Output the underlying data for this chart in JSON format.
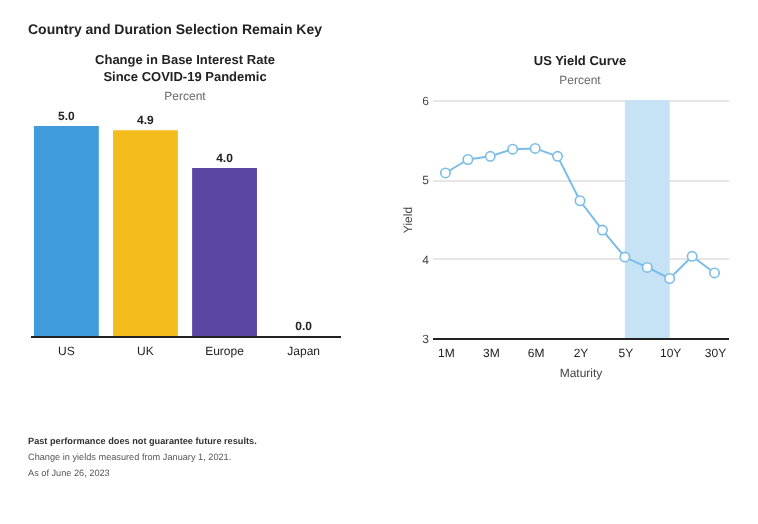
{
  "chart_data": [
    {
      "type": "other",
      "title": "Country and Duration Selection Remain Key",
      "annotations": [
        "Past performance does not guarantee future results.",
        "Change in yields measured from January 1, 2021.",
        "As of June 26, 2023"
      ]
    },
    {
      "type": "bar",
      "title": "Change in Base Interest Rate\nSince COVID-19 Pandemic",
      "subtitle": "Percent",
      "categories": [
        "US",
        "UK",
        "Europe",
        "Japan"
      ],
      "values": [
        5.0,
        4.9,
        4.0,
        0.0
      ],
      "colors": [
        "#3f9bdc",
        "#f5bd1b",
        "#5b46a3",
        "#333333"
      ],
      "value_labels": [
        "5.0",
        "4.9",
        "4.0",
        "0.0"
      ]
    },
    {
      "type": "line",
      "title": "US Yield Curve",
      "subtitle": "Percent",
      "xlabel": "Maturity",
      "ylabel": "Yield",
      "categories": [
        "1M",
        null,
        "3M",
        null,
        "6M",
        null,
        "2Y",
        null,
        "5Y",
        null,
        "10Y",
        null,
        "30Y"
      ],
      "series": [
        {
          "color": "#7bbde8",
          "values": [
            5.08,
            5.25,
            5.29,
            5.38,
            5.39,
            5.29,
            4.73,
            4.36,
            4.02,
            3.89,
            3.75,
            4.03,
            3.82
          ]
        }
      ],
      "ylim": [
        3,
        6
      ],
      "yticks": [
        3,
        4,
        5,
        6
      ],
      "grid": "y",
      "marker": "circle",
      "bands": [
        {
          "axis": "x",
          "from": "5Y",
          "to": "10Y",
          "color": "#c5e3f5"
        }
      ]
    }
  ]
}
